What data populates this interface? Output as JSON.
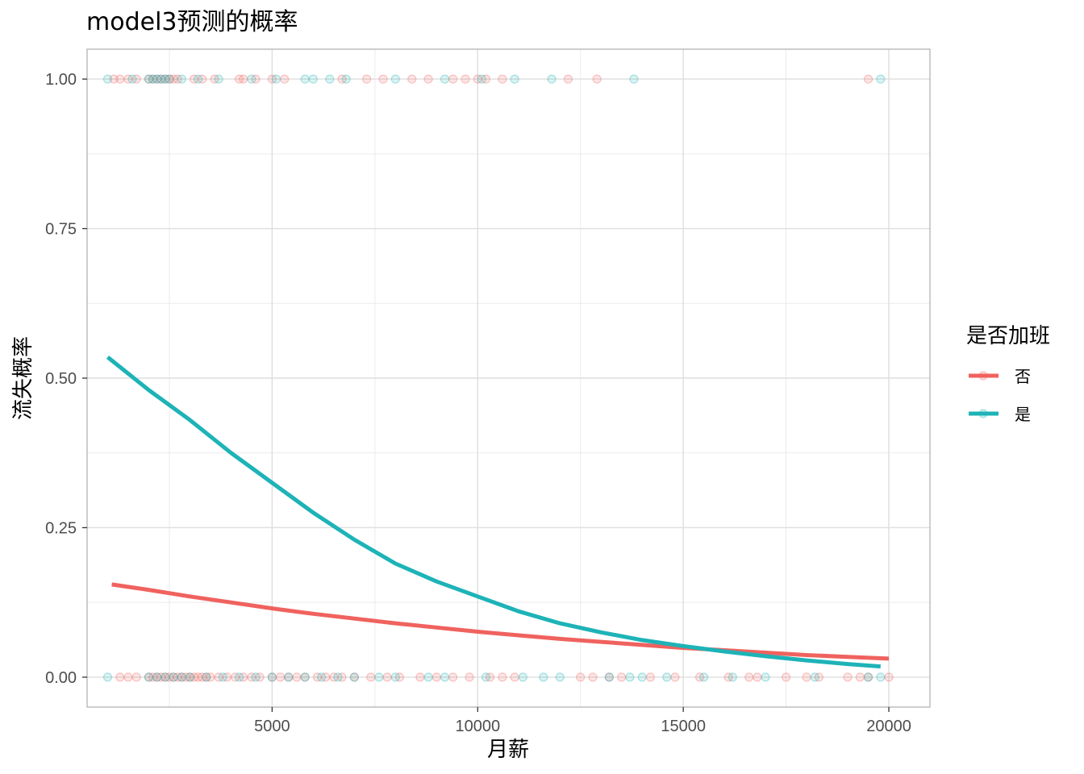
{
  "chart_data": {
    "type": "line",
    "title": "model3预测的概率",
    "xlabel": "月薪",
    "ylabel": "流失概率",
    "xlim": [
      500,
      21000
    ],
    "ylim": [
      -0.05,
      1.05
    ],
    "x_ticks": [
      5000,
      10000,
      15000,
      20000
    ],
    "x_tick_labels": [
      "5000",
      "10000",
      "15000",
      "20000"
    ],
    "y_ticks": [
      0,
      0.25,
      0.5,
      0.75,
      1
    ],
    "y_tick_labels": [
      "0.00",
      "0.25",
      "0.50",
      "0.75",
      "1.00"
    ],
    "grid": true,
    "legend": {
      "title": "是否加班",
      "position": "right",
      "entries": [
        {
          "label": "否",
          "color": "#F0625E"
        },
        {
          "label": "是",
          "color": "#1DB3B7"
        }
      ]
    },
    "series": [
      {
        "name": "否",
        "color": "#F0625E",
        "x": [
          1100,
          2000,
          3000,
          4000,
          5000,
          6000,
          7000,
          8000,
          9000,
          10000,
          11000,
          12000,
          13000,
          14000,
          15000,
          16000,
          17000,
          18000,
          19000,
          20000
        ],
        "y": [
          0.155,
          0.146,
          0.135,
          0.125,
          0.115,
          0.106,
          0.098,
          0.09,
          0.083,
          0.076,
          0.07,
          0.064,
          0.059,
          0.054,
          0.049,
          0.045,
          0.041,
          0.037,
          0.034,
          0.031
        ]
      },
      {
        "name": "是",
        "color": "#1DB3B7",
        "x": [
          1000,
          2000,
          3000,
          4000,
          5000,
          6000,
          7000,
          8000,
          9000,
          10000,
          11000,
          12000,
          13000,
          14000,
          15000,
          16000,
          17000,
          18000,
          19000,
          19800
        ],
        "y": [
          0.535,
          0.48,
          0.43,
          0.375,
          0.325,
          0.275,
          0.23,
          0.19,
          0.16,
          0.135,
          0.11,
          0.09,
          0.075,
          0.062,
          0.052,
          0.043,
          0.035,
          0.028,
          0.022,
          0.018
        ]
      }
    ],
    "points": {
      "否": {
        "y1_x": [
          1150,
          1300,
          1500,
          1700,
          2000,
          2100,
          2200,
          2300,
          2400,
          2500,
          2600,
          2700,
          3100,
          3300,
          3600,
          4200,
          4300,
          4600,
          5000,
          5300,
          6700,
          7300,
          7700,
          8400,
          8800,
          9400,
          9700,
          10000,
          10200,
          10600,
          12200,
          12900,
          19500
        ],
        "y0_x": [
          1300,
          1500,
          1700,
          2000,
          2100,
          2200,
          2300,
          2400,
          2500,
          2600,
          2700,
          2800,
          2900,
          3000,
          3100,
          3200,
          3300,
          3400,
          3500,
          3700,
          3900,
          4100,
          4300,
          4500,
          4700,
          5000,
          5200,
          5400,
          5600,
          5800,
          6100,
          6300,
          6500,
          6700,
          7000,
          7400,
          7800,
          8100,
          8600,
          9000,
          9400,
          9800,
          10300,
          10600,
          10900,
          12500,
          12800,
          13200,
          13500,
          14200,
          14800,
          15400,
          16100,
          16600,
          16800,
          17500,
          18000,
          18300,
          19000,
          19300,
          19500,
          20000
        ]
      },
      "是": {
        "y1_x": [
          1000,
          1600,
          2000,
          2100,
          2200,
          2300,
          2400,
          2500,
          2800,
          3200,
          3700,
          4500,
          5100,
          5800,
          6000,
          6400,
          6800,
          8000,
          9200,
          10100,
          10900,
          11800,
          13800,
          19800
        ],
        "y0_x": [
          1000,
          2000,
          2200,
          2400,
          2600,
          2800,
          3000,
          3400,
          3800,
          4200,
          4600,
          5000,
          5400,
          5800,
          6200,
          6600,
          7000,
          7600,
          8000,
          8800,
          9200,
          10200,
          11100,
          11600,
          12000,
          13200,
          13700,
          14000,
          14600,
          15500,
          16200,
          17000,
          18200,
          19500,
          19800
        ]
      }
    }
  }
}
